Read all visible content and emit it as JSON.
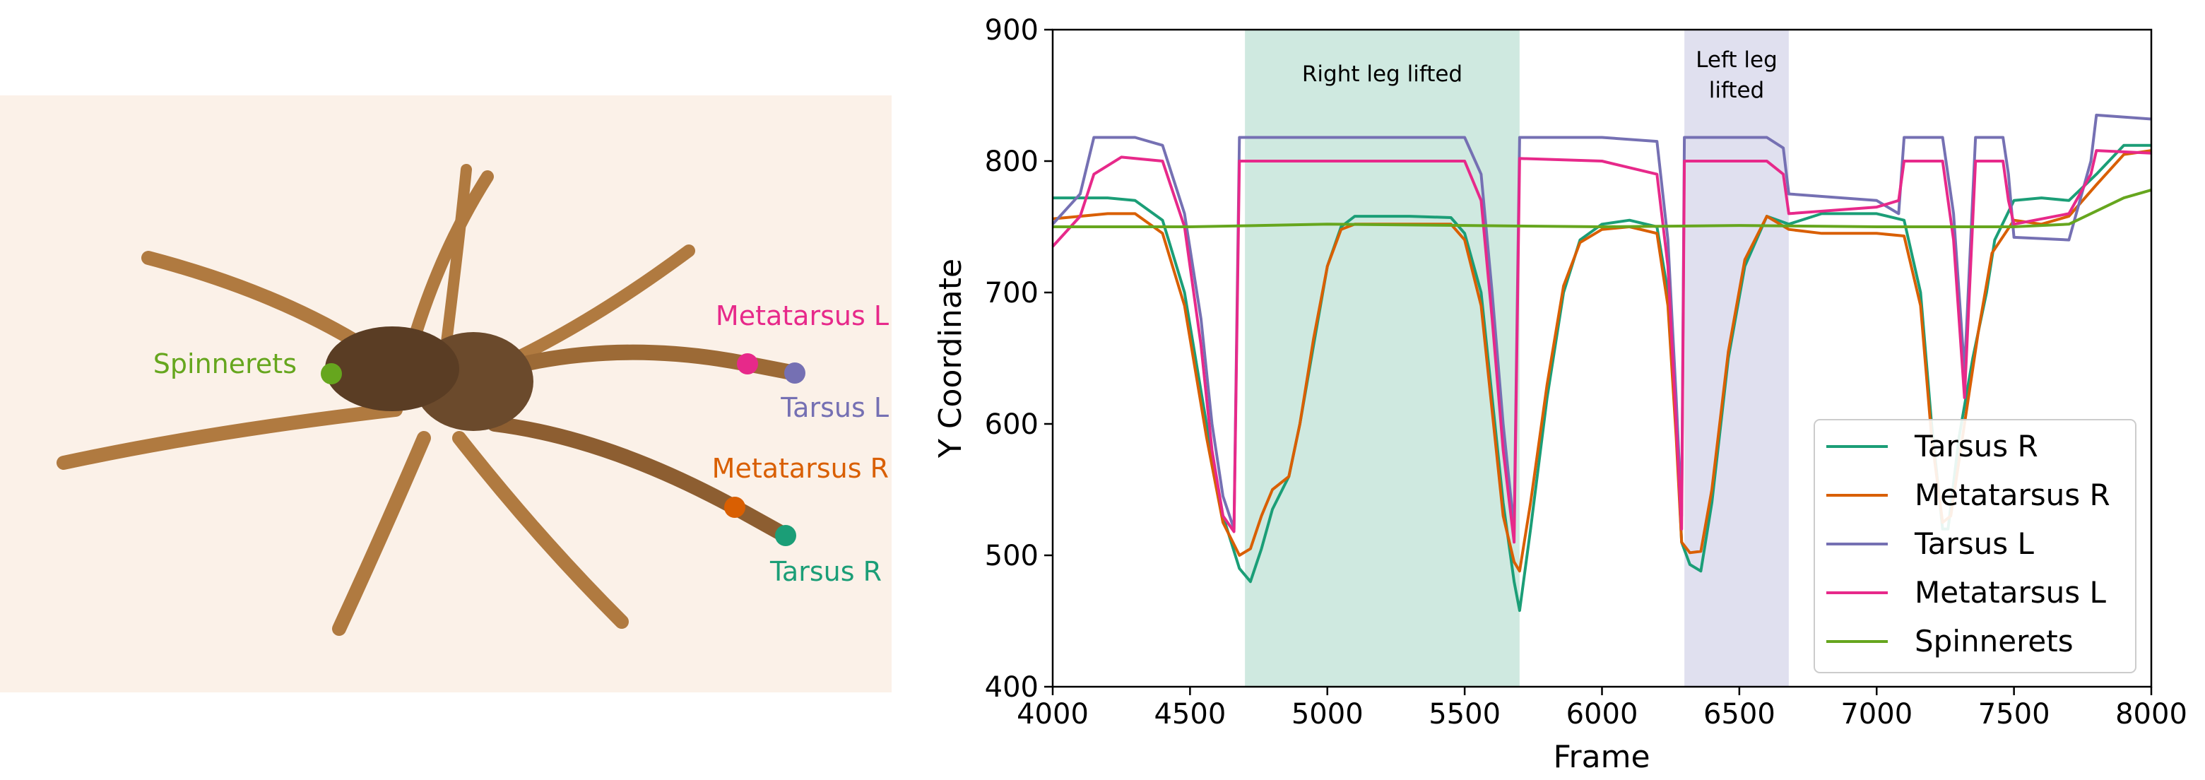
{
  "colors": {
    "tarsus_r": "#1b9e77",
    "metatarsus_r": "#d95f02",
    "tarsus_l": "#7570b3",
    "metatarsus_l": "#e7298a",
    "spinnerets": "#66a61e",
    "right_lift_band": "#cfe9e0",
    "left_lift_band": "#e0e0ef",
    "photo_bg": "#fbf1e8"
  },
  "photo": {
    "labels": {
      "spinnerets": "Spinnerets",
      "metatarsus_l": "Metatarsus L",
      "tarsus_l": "Tarsus L",
      "metatarsus_r": "Metatarsus R",
      "tarsus_r": "Tarsus R"
    }
  },
  "chart_data": {
    "type": "line",
    "xlabel": "Frame",
    "ylabel": "Y Coordinate",
    "xlim": [
      4000,
      8000
    ],
    "ylim": [
      400,
      900
    ],
    "xticks": [
      4000,
      4500,
      5000,
      5500,
      6000,
      6500,
      7000,
      7500,
      8000
    ],
    "yticks": [
      400,
      500,
      600,
      700,
      800,
      900
    ],
    "grid": false,
    "legend_position": "bottom-right",
    "annotations": [
      {
        "text": "Right leg lifted",
        "x_range": [
          4700,
          5700
        ]
      },
      {
        "text": "Left leg lifted",
        "x_range": [
          6300,
          6680
        ]
      }
    ],
    "series": [
      {
        "name": "Tarsus R",
        "color": "#1b9e77",
        "points": [
          [
            4000,
            772
          ],
          [
            4200,
            772
          ],
          [
            4300,
            770
          ],
          [
            4400,
            755
          ],
          [
            4480,
            700
          ],
          [
            4560,
            600
          ],
          [
            4620,
            530
          ],
          [
            4680,
            490
          ],
          [
            4720,
            480
          ],
          [
            4760,
            505
          ],
          [
            4800,
            535
          ],
          [
            4860,
            560
          ],
          [
            4900,
            600
          ],
          [
            4950,
            660
          ],
          [
            5000,
            720
          ],
          [
            5050,
            750
          ],
          [
            5100,
            758
          ],
          [
            5300,
            758
          ],
          [
            5450,
            757
          ],
          [
            5500,
            745
          ],
          [
            5560,
            700
          ],
          [
            5600,
            620
          ],
          [
            5640,
            540
          ],
          [
            5680,
            480
          ],
          [
            5700,
            458
          ],
          [
            5740,
            520
          ],
          [
            5800,
            620
          ],
          [
            5860,
            700
          ],
          [
            5920,
            740
          ],
          [
            6000,
            752
          ],
          [
            6100,
            755
          ],
          [
            6200,
            750
          ],
          [
            6240,
            700
          ],
          [
            6270,
            600
          ],
          [
            6290,
            510
          ],
          [
            6320,
            493
          ],
          [
            6360,
            488
          ],
          [
            6400,
            540
          ],
          [
            6460,
            650
          ],
          [
            6520,
            720
          ],
          [
            6600,
            758
          ],
          [
            6680,
            752
          ],
          [
            6800,
            760
          ],
          [
            7000,
            760
          ],
          [
            7100,
            755
          ],
          [
            7160,
            700
          ],
          [
            7200,
            600
          ],
          [
            7240,
            520
          ],
          [
            7260,
            520
          ],
          [
            7300,
            590
          ],
          [
            7350,
            650
          ],
          [
            7400,
            700
          ],
          [
            7430,
            740
          ],
          [
            7500,
            770
          ],
          [
            7600,
            772
          ],
          [
            7700,
            770
          ],
          [
            7800,
            790
          ],
          [
            7900,
            812
          ],
          [
            8000,
            812
          ]
        ]
      },
      {
        "name": "Metatarsus R",
        "color": "#d95f02",
        "points": [
          [
            4000,
            756
          ],
          [
            4200,
            760
          ],
          [
            4300,
            760
          ],
          [
            4400,
            745
          ],
          [
            4480,
            690
          ],
          [
            4560,
            590
          ],
          [
            4620,
            525
          ],
          [
            4680,
            500
          ],
          [
            4720,
            505
          ],
          [
            4760,
            530
          ],
          [
            4800,
            550
          ],
          [
            4860,
            560
          ],
          [
            4900,
            600
          ],
          [
            4950,
            665
          ],
          [
            5000,
            720
          ],
          [
            5050,
            748
          ],
          [
            5100,
            752
          ],
          [
            5300,
            752
          ],
          [
            5450,
            752
          ],
          [
            5500,
            740
          ],
          [
            5560,
            690
          ],
          [
            5600,
            610
          ],
          [
            5640,
            530
          ],
          [
            5680,
            495
          ],
          [
            5700,
            488
          ],
          [
            5740,
            540
          ],
          [
            5800,
            630
          ],
          [
            5860,
            705
          ],
          [
            5920,
            738
          ],
          [
            6000,
            748
          ],
          [
            6100,
            750
          ],
          [
            6200,
            745
          ],
          [
            6240,
            690
          ],
          [
            6270,
            590
          ],
          [
            6290,
            510
          ],
          [
            6320,
            502
          ],
          [
            6360,
            503
          ],
          [
            6400,
            550
          ],
          [
            6460,
            655
          ],
          [
            6520,
            725
          ],
          [
            6600,
            758
          ],
          [
            6680,
            748
          ],
          [
            6800,
            745
          ],
          [
            7000,
            745
          ],
          [
            7100,
            743
          ],
          [
            7160,
            690
          ],
          [
            7200,
            590
          ],
          [
            7240,
            525
          ],
          [
            7270,
            530
          ],
          [
            7320,
            600
          ],
          [
            7370,
            670
          ],
          [
            7420,
            730
          ],
          [
            7500,
            755
          ],
          [
            7600,
            752
          ],
          [
            7700,
            758
          ],
          [
            7800,
            782
          ],
          [
            7900,
            805
          ],
          [
            8000,
            808
          ]
        ]
      },
      {
        "name": "Tarsus L",
        "color": "#7570b3",
        "points": [
          [
            4000,
            752
          ],
          [
            4100,
            775
          ],
          [
            4150,
            818
          ],
          [
            4300,
            818
          ],
          [
            4400,
            812
          ],
          [
            4480,
            760
          ],
          [
            4540,
            680
          ],
          [
            4580,
            600
          ],
          [
            4620,
            545
          ],
          [
            4660,
            520
          ],
          [
            4680,
            818
          ],
          [
            5000,
            818
          ],
          [
            5500,
            818
          ],
          [
            5560,
            790
          ],
          [
            5600,
            700
          ],
          [
            5640,
            600
          ],
          [
            5680,
            520
          ],
          [
            5700,
            818
          ],
          [
            6000,
            818
          ],
          [
            6200,
            815
          ],
          [
            6240,
            740
          ],
          [
            6270,
            620
          ],
          [
            6290,
            530
          ],
          [
            6300,
            818
          ],
          [
            6600,
            818
          ],
          [
            6660,
            810
          ],
          [
            6680,
            775
          ],
          [
            7000,
            770
          ],
          [
            7080,
            760
          ],
          [
            7100,
            818
          ],
          [
            7240,
            818
          ],
          [
            7280,
            760
          ],
          [
            7320,
            640
          ],
          [
            7360,
            818
          ],
          [
            7460,
            818
          ],
          [
            7480,
            790
          ],
          [
            7500,
            742
          ],
          [
            7700,
            740
          ],
          [
            7780,
            800
          ],
          [
            7800,
            835
          ],
          [
            8000,
            832
          ]
        ]
      },
      {
        "name": "Metatarsus L",
        "color": "#e7298a",
        "points": [
          [
            4000,
            735
          ],
          [
            4100,
            758
          ],
          [
            4150,
            790
          ],
          [
            4250,
            803
          ],
          [
            4400,
            800
          ],
          [
            4480,
            750
          ],
          [
            4540,
            660
          ],
          [
            4580,
            580
          ],
          [
            4620,
            530
          ],
          [
            4660,
            518
          ],
          [
            4680,
            800
          ],
          [
            5000,
            800
          ],
          [
            5500,
            800
          ],
          [
            5560,
            770
          ],
          [
            5600,
            680
          ],
          [
            5640,
            580
          ],
          [
            5680,
            510
          ],
          [
            5700,
            802
          ],
          [
            6000,
            800
          ],
          [
            6200,
            790
          ],
          [
            6240,
            720
          ],
          [
            6270,
            600
          ],
          [
            6290,
            520
          ],
          [
            6300,
            800
          ],
          [
            6600,
            800
          ],
          [
            6660,
            790
          ],
          [
            6680,
            760
          ],
          [
            7000,
            765
          ],
          [
            7080,
            770
          ],
          [
            7100,
            800
          ],
          [
            7240,
            800
          ],
          [
            7280,
            740
          ],
          [
            7320,
            620
          ],
          [
            7360,
            800
          ],
          [
            7460,
            800
          ],
          [
            7480,
            770
          ],
          [
            7500,
            752
          ],
          [
            7700,
            760
          ],
          [
            7780,
            790
          ],
          [
            7800,
            808
          ],
          [
            8000,
            806
          ]
        ]
      },
      {
        "name": "Spinnerets",
        "color": "#66a61e",
        "points": [
          [
            4000,
            750
          ],
          [
            4500,
            750
          ],
          [
            5000,
            752
          ],
          [
            5500,
            751
          ],
          [
            6000,
            750
          ],
          [
            6500,
            751
          ],
          [
            7000,
            750
          ],
          [
            7500,
            750
          ],
          [
            7700,
            752
          ],
          [
            7800,
            762
          ],
          [
            7900,
            772
          ],
          [
            8000,
            778
          ]
        ]
      }
    ]
  }
}
